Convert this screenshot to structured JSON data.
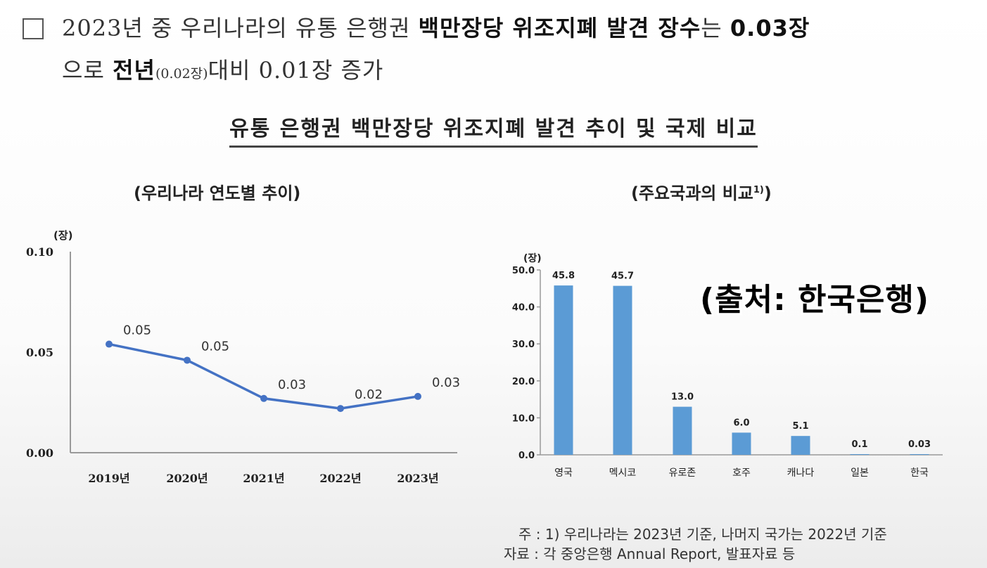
{
  "headline": {
    "part1": "2023년 중 우리나라의 유통 은행권 ",
    "bold1": "백만장당 위조지폐 발견 장수",
    "part2": "는 ",
    "bold2": "0.03장",
    "line2_part1": "으로 ",
    "bold3": "전년",
    "small": "(0.02장)",
    "line2_part2": "대비 0.01장 증가"
  },
  "section_title": "유통 은행권 백만장당 위조지폐 발견 추이 및 국제 비교",
  "left_subtitle": "(우리나라 연도별 추이)",
  "right_subtitle": "(주요국과의 비교",
  "right_subtitle_sup": "1)",
  "right_subtitle_close": ")",
  "watermark": "(출처: 한국은행)",
  "notes": {
    "note1": "주 : 1) 우리나라는 2023년 기준, 나머지 국가는 2022년 기준",
    "note2": "자료 : 각 중앙은행 Annual Report, 발표자료 등"
  },
  "colors": {
    "line": "#4472C4",
    "bar": "#5B9BD5",
    "axis": "#999999"
  },
  "chart_data": [
    {
      "type": "line",
      "unit": "(장)",
      "categories": [
        "2019년",
        "2020년",
        "2021년",
        "2022년",
        "2023년"
      ],
      "values": [
        0.054,
        0.046,
        0.027,
        0.022,
        0.028
      ],
      "data_labels": [
        "0.05",
        "0.05",
        "0.03",
        "0.02",
        "0.03"
      ],
      "ylim": [
        0,
        0.1
      ],
      "yticks": [
        "0.00",
        "0.05",
        "0.10"
      ],
      "grid": false
    },
    {
      "type": "bar",
      "unit": "(장)",
      "categories": [
        "영국",
        "멕시코",
        "유로존",
        "호주",
        "캐나다",
        "일본",
        "한국"
      ],
      "values": [
        45.8,
        45.7,
        13.0,
        6.0,
        5.1,
        0.1,
        0.03
      ],
      "data_labels": [
        "45.8",
        "45.7",
        "13.0",
        "6.0",
        "5.1",
        "0.1",
        "0.03"
      ],
      "ylim": [
        0,
        50
      ],
      "yticks": [
        "0.0",
        "10.0",
        "20.0",
        "30.0",
        "40.0",
        "50.0"
      ],
      "grid": false
    }
  ]
}
